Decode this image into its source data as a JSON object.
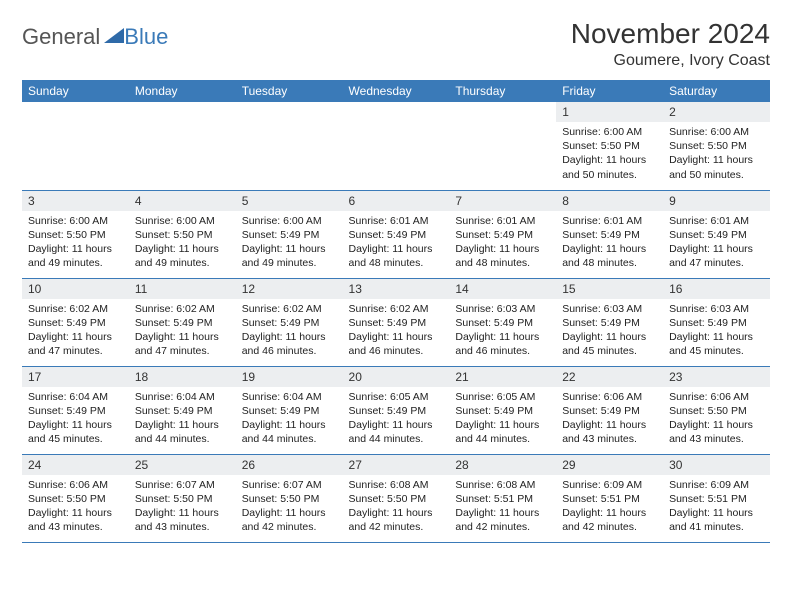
{
  "logo": {
    "word1": "General",
    "word2": "Blue"
  },
  "title": "November 2024",
  "location": "Goumere, Ivory Coast",
  "colors": {
    "header_bg": "#3a7ab8",
    "header_text": "#ffffff",
    "daynum_bg": "#eceef0",
    "text": "#222222",
    "divider": "#3a7ab8",
    "logo_gray": "#555555",
    "logo_blue": "#3a7ab8",
    "background": "#ffffff"
  },
  "day_headers": [
    "Sunday",
    "Monday",
    "Tuesday",
    "Wednesday",
    "Thursday",
    "Friday",
    "Saturday"
  ],
  "weeks": [
    [
      null,
      null,
      null,
      null,
      null,
      {
        "num": "1",
        "sunrise": "6:00 AM",
        "sunset": "5:50 PM",
        "daylight": "11 hours and 50 minutes."
      },
      {
        "num": "2",
        "sunrise": "6:00 AM",
        "sunset": "5:50 PM",
        "daylight": "11 hours and 50 minutes."
      }
    ],
    [
      {
        "num": "3",
        "sunrise": "6:00 AM",
        "sunset": "5:50 PM",
        "daylight": "11 hours and 49 minutes."
      },
      {
        "num": "4",
        "sunrise": "6:00 AM",
        "sunset": "5:50 PM",
        "daylight": "11 hours and 49 minutes."
      },
      {
        "num": "5",
        "sunrise": "6:00 AM",
        "sunset": "5:49 PM",
        "daylight": "11 hours and 49 minutes."
      },
      {
        "num": "6",
        "sunrise": "6:01 AM",
        "sunset": "5:49 PM",
        "daylight": "11 hours and 48 minutes."
      },
      {
        "num": "7",
        "sunrise": "6:01 AM",
        "sunset": "5:49 PM",
        "daylight": "11 hours and 48 minutes."
      },
      {
        "num": "8",
        "sunrise": "6:01 AM",
        "sunset": "5:49 PM",
        "daylight": "11 hours and 48 minutes."
      },
      {
        "num": "9",
        "sunrise": "6:01 AM",
        "sunset": "5:49 PM",
        "daylight": "11 hours and 47 minutes."
      }
    ],
    [
      {
        "num": "10",
        "sunrise": "6:02 AM",
        "sunset": "5:49 PM",
        "daylight": "11 hours and 47 minutes."
      },
      {
        "num": "11",
        "sunrise": "6:02 AM",
        "sunset": "5:49 PM",
        "daylight": "11 hours and 47 minutes."
      },
      {
        "num": "12",
        "sunrise": "6:02 AM",
        "sunset": "5:49 PM",
        "daylight": "11 hours and 46 minutes."
      },
      {
        "num": "13",
        "sunrise": "6:02 AM",
        "sunset": "5:49 PM",
        "daylight": "11 hours and 46 minutes."
      },
      {
        "num": "14",
        "sunrise": "6:03 AM",
        "sunset": "5:49 PM",
        "daylight": "11 hours and 46 minutes."
      },
      {
        "num": "15",
        "sunrise": "6:03 AM",
        "sunset": "5:49 PM",
        "daylight": "11 hours and 45 minutes."
      },
      {
        "num": "16",
        "sunrise": "6:03 AM",
        "sunset": "5:49 PM",
        "daylight": "11 hours and 45 minutes."
      }
    ],
    [
      {
        "num": "17",
        "sunrise": "6:04 AM",
        "sunset": "5:49 PM",
        "daylight": "11 hours and 45 minutes."
      },
      {
        "num": "18",
        "sunrise": "6:04 AM",
        "sunset": "5:49 PM",
        "daylight": "11 hours and 44 minutes."
      },
      {
        "num": "19",
        "sunrise": "6:04 AM",
        "sunset": "5:49 PM",
        "daylight": "11 hours and 44 minutes."
      },
      {
        "num": "20",
        "sunrise": "6:05 AM",
        "sunset": "5:49 PM",
        "daylight": "11 hours and 44 minutes."
      },
      {
        "num": "21",
        "sunrise": "6:05 AM",
        "sunset": "5:49 PM",
        "daylight": "11 hours and 44 minutes."
      },
      {
        "num": "22",
        "sunrise": "6:06 AM",
        "sunset": "5:49 PM",
        "daylight": "11 hours and 43 minutes."
      },
      {
        "num": "23",
        "sunrise": "6:06 AM",
        "sunset": "5:50 PM",
        "daylight": "11 hours and 43 minutes."
      }
    ],
    [
      {
        "num": "24",
        "sunrise": "6:06 AM",
        "sunset": "5:50 PM",
        "daylight": "11 hours and 43 minutes."
      },
      {
        "num": "25",
        "sunrise": "6:07 AM",
        "sunset": "5:50 PM",
        "daylight": "11 hours and 43 minutes."
      },
      {
        "num": "26",
        "sunrise": "6:07 AM",
        "sunset": "5:50 PM",
        "daylight": "11 hours and 42 minutes."
      },
      {
        "num": "27",
        "sunrise": "6:08 AM",
        "sunset": "5:50 PM",
        "daylight": "11 hours and 42 minutes."
      },
      {
        "num": "28",
        "sunrise": "6:08 AM",
        "sunset": "5:51 PM",
        "daylight": "11 hours and 42 minutes."
      },
      {
        "num": "29",
        "sunrise": "6:09 AM",
        "sunset": "5:51 PM",
        "daylight": "11 hours and 42 minutes."
      },
      {
        "num": "30",
        "sunrise": "6:09 AM",
        "sunset": "5:51 PM",
        "daylight": "11 hours and 41 minutes."
      }
    ]
  ],
  "labels": {
    "sunrise": "Sunrise:",
    "sunset": "Sunset:",
    "daylight": "Daylight:"
  }
}
